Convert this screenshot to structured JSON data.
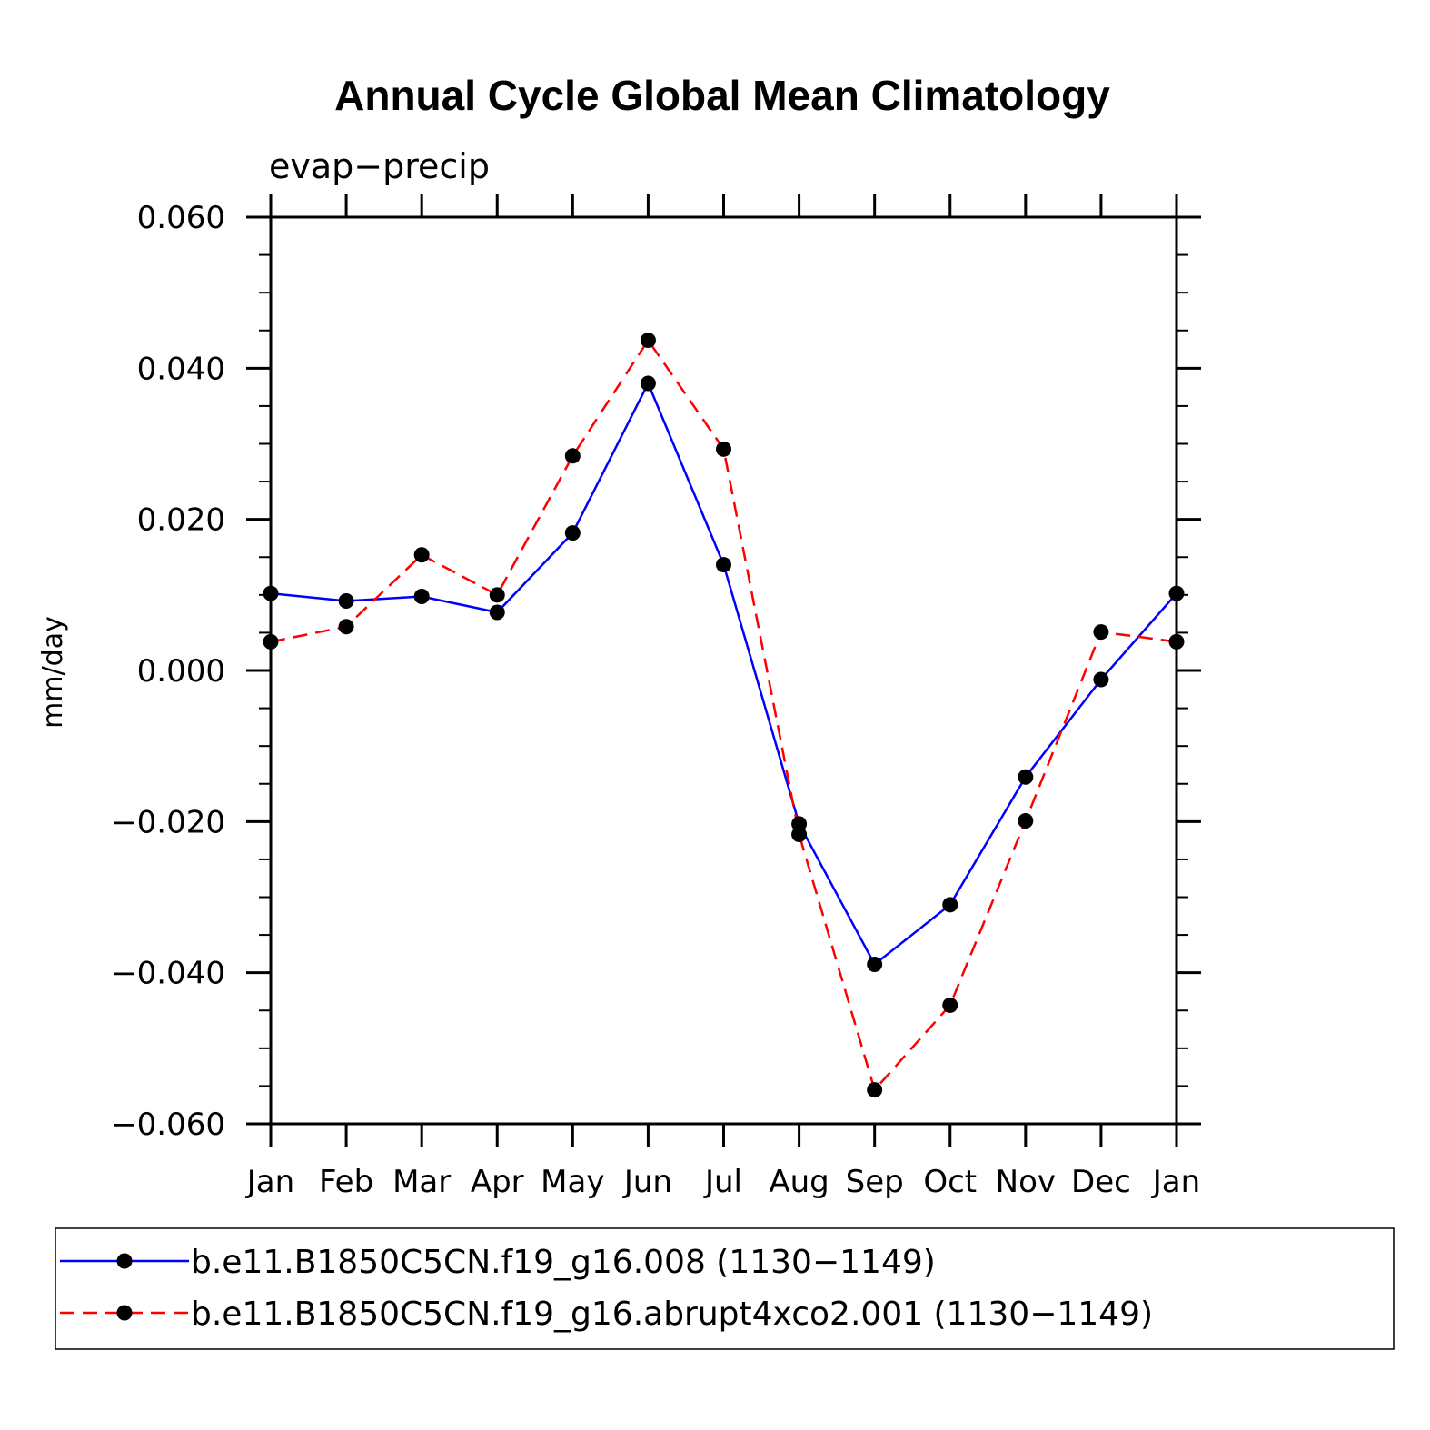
{
  "chart_data": {
    "type": "line",
    "title": "Annual Cycle Global Mean Climatology",
    "subtitle": "evap−precip",
    "xlabel": "",
    "ylabel": "mm/day",
    "categories": [
      "Jan",
      "Feb",
      "Mar",
      "Apr",
      "May",
      "Jun",
      "Jul",
      "Aug",
      "Sep",
      "Oct",
      "Nov",
      "Dec",
      "Jan"
    ],
    "ylim": [
      -0.06,
      0.06
    ],
    "yticks": [
      -0.06,
      -0.04,
      -0.02,
      0.0,
      0.02,
      0.04,
      0.06
    ],
    "ytick_labels": [
      "−0.060",
      "−0.040",
      "−0.020",
      "0.000",
      "0.020",
      "0.040",
      "0.060"
    ],
    "grid": false,
    "legend_position": "bottom",
    "series": [
      {
        "name": "b.e11.B1850C5CN.f19_g16.008 (1130−1149)",
        "color": "#0000ff",
        "style": "solid",
        "values": [
          0.0102,
          0.0092,
          0.0098,
          0.0077,
          0.0182,
          0.038,
          0.014,
          -0.0203,
          -0.0389,
          -0.031,
          -0.0141,
          -0.0012,
          0.0102
        ]
      },
      {
        "name": "b.e11.B1850C5CN.f19_g16.abrupt4xco2.001 (1130−1149)",
        "color": "#ff0000",
        "style": "dashed",
        "values": [
          0.0038,
          0.0058,
          0.0153,
          0.01,
          0.0284,
          0.0437,
          0.0293,
          -0.0217,
          -0.0555,
          -0.0443,
          -0.0199,
          0.0051,
          0.0038
        ]
      }
    ]
  }
}
